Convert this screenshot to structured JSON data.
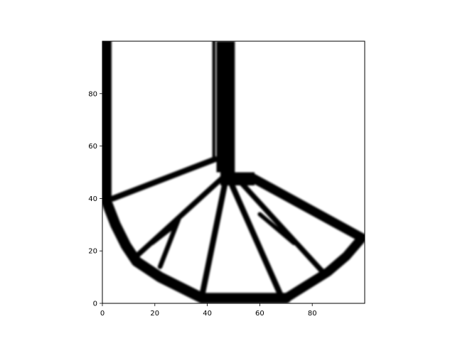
{
  "chart_data": {
    "type": "heatmap",
    "title": "",
    "xlabel": "",
    "ylabel": "",
    "xlim": [
      0,
      100
    ],
    "ylim": [
      0,
      100
    ],
    "grid": false,
    "colormap": "gray_r",
    "x_ticks": [
      0,
      20,
      40,
      60,
      80
    ],
    "y_ticks": [
      0,
      20,
      40,
      60,
      80
    ],
    "x_tick_labels": [
      "0",
      "20",
      "40",
      "60",
      "80"
    ],
    "y_tick_labels": [
      "0",
      "20",
      "40",
      "60",
      "80"
    ],
    "solid_regions": [
      {
        "name": "column",
        "polygon": [
          [
            43.5,
            100
          ],
          [
            50.5,
            100
          ],
          [
            50.5,
            50
          ],
          [
            43.5,
            50
          ]
        ]
      },
      {
        "name": "hub",
        "polygon": [
          [
            45,
            50
          ],
          [
            58,
            50
          ],
          [
            58,
            45
          ],
          [
            45,
            45
          ]
        ]
      }
    ],
    "members": [
      {
        "name": "left-wall",
        "points": [
          [
            1.5,
            100
          ],
          [
            1.5,
            39
          ]
        ],
        "thickness": 4
      },
      {
        "name": "inner-thin-wall",
        "points": [
          [
            42.5,
            100
          ],
          [
            42.5,
            55
          ]
        ],
        "thickness": 1.2
      },
      {
        "name": "arc-left-lower",
        "points": [
          [
            1.5,
            39
          ],
          [
            5,
            30
          ],
          [
            9,
            22
          ],
          [
            13,
            16
          ],
          [
            22,
            10
          ],
          [
            38,
            2
          ]
        ],
        "thickness": 4
      },
      {
        "name": "bottom-chord",
        "points": [
          [
            38,
            2
          ],
          [
            70,
            2
          ]
        ],
        "thickness": 4
      },
      {
        "name": "arc-right-lower",
        "points": [
          [
            70,
            2
          ],
          [
            86,
            12
          ],
          [
            93,
            18
          ],
          [
            99,
            25
          ]
        ],
        "thickness": 3.5
      },
      {
        "name": "upper-right-chord",
        "points": [
          [
            57,
            48
          ],
          [
            99,
            25
          ]
        ],
        "thickness": 3.5
      },
      {
        "name": "upper-left-tie",
        "points": [
          [
            4,
            40
          ],
          [
            43,
            55
          ]
        ],
        "thickness": 2.2
      },
      {
        "name": "strut-a",
        "points": [
          [
            13,
            18
          ],
          [
            47,
            49
          ]
        ],
        "thickness": 2
      },
      {
        "name": "strut-b",
        "points": [
          [
            22,
            14
          ],
          [
            29,
            32
          ]
        ],
        "thickness": 1.8
      },
      {
        "name": "strut-c",
        "points": [
          [
            19,
            23
          ],
          [
            28,
            30
          ]
        ],
        "thickness": 1.6
      },
      {
        "name": "strut-d",
        "points": [
          [
            38,
            3
          ],
          [
            47,
            47
          ]
        ],
        "thickness": 2.2
      },
      {
        "name": "strut-e",
        "points": [
          [
            68,
            3
          ],
          [
            49,
            46
          ]
        ],
        "thickness": 2.2
      },
      {
        "name": "strut-f",
        "points": [
          [
            84,
            12
          ],
          [
            52,
            47
          ]
        ],
        "thickness": 2
      },
      {
        "name": "strut-g",
        "points": [
          [
            60,
            34
          ],
          [
            73,
            23
          ]
        ],
        "thickness": 1.6
      }
    ]
  }
}
